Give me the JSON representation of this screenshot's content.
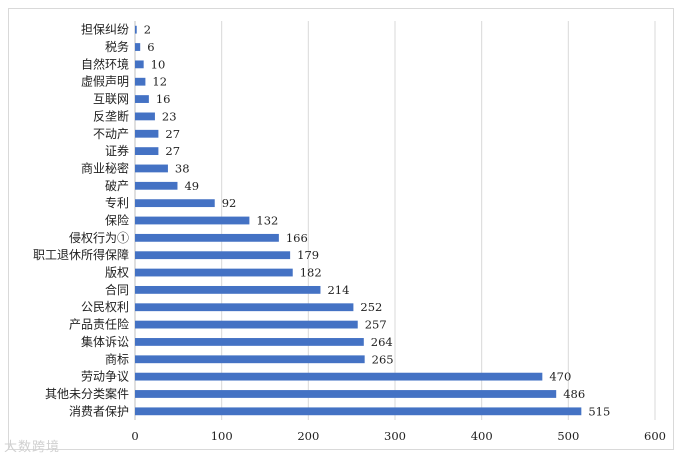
{
  "chart_data": {
    "type": "bar",
    "orientation": "horizontal",
    "categories": [
      "担保纠纷",
      "税务",
      "自然环境",
      "虚假声明",
      "互联网",
      "反垄断",
      "不动产",
      "证券",
      "商业秘密",
      "破产",
      "专利",
      "保险",
      "侵权行为①",
      "职工退休所得保障",
      "版权",
      "合同",
      "公民权利",
      "产品责任险",
      "集体诉讼",
      "商标",
      "劳动争议",
      "其他未分类案件",
      "消费者保护"
    ],
    "values": [
      2,
      6,
      10,
      12,
      16,
      23,
      27,
      27,
      38,
      49,
      92,
      132,
      166,
      179,
      182,
      214,
      252,
      257,
      264,
      265,
      470,
      486,
      515
    ],
    "xlim": [
      0,
      600
    ],
    "xticks": [
      0,
      100,
      200,
      300,
      400,
      500,
      600
    ],
    "grid": true,
    "bar_color": "#4472c4",
    "title": "",
    "xlabel": "",
    "ylabel": ""
  },
  "watermark": "大数跨境"
}
